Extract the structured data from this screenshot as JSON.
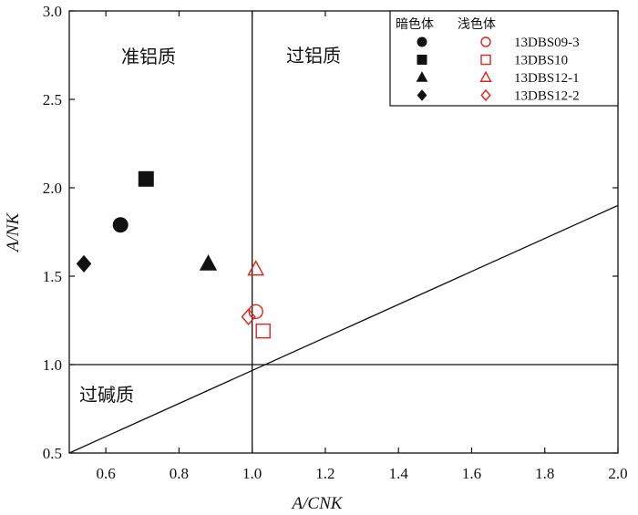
{
  "chart_data": {
    "type": "scatter",
    "title": "",
    "xlabel": "A/CNK",
    "ylabel": "A/NK",
    "xlim": [
      0.5,
      2.0
    ],
    "ylim": [
      0.5,
      3.0
    ],
    "x_ticks": [
      "0.6",
      "0.8",
      "1.0",
      "1.2",
      "1.4",
      "1.6",
      "1.8",
      "2.0"
    ],
    "y_ticks": [
      "0.5",
      "1.0",
      "1.5",
      "2.0",
      "2.5",
      "3.0"
    ],
    "grid": false,
    "legend_position": "top-right",
    "legend_groups": [
      "暗色体",
      "浅色体"
    ],
    "regions": [
      "准铝质",
      "过铝质",
      "过碱质"
    ],
    "colors": {
      "dark": "#111111",
      "light": "#e0231e"
    },
    "series": [
      {
        "name": "13DBS09-3",
        "marker": "circle",
        "dark": [
          0.64,
          1.79
        ],
        "light": [
          1.01,
          1.3
        ]
      },
      {
        "name": "13DBS10",
        "marker": "square",
        "dark": [
          0.71,
          2.05
        ],
        "light": [
          1.03,
          1.19
        ]
      },
      {
        "name": "13DBS12-1",
        "marker": "triangle",
        "dark": [
          0.88,
          1.57
        ],
        "light": [
          1.01,
          1.54
        ]
      },
      {
        "name": "13DBS12-2",
        "marker": "diamond",
        "dark": [
          0.54,
          1.57
        ],
        "light": [
          0.99,
          1.27
        ]
      }
    ]
  }
}
